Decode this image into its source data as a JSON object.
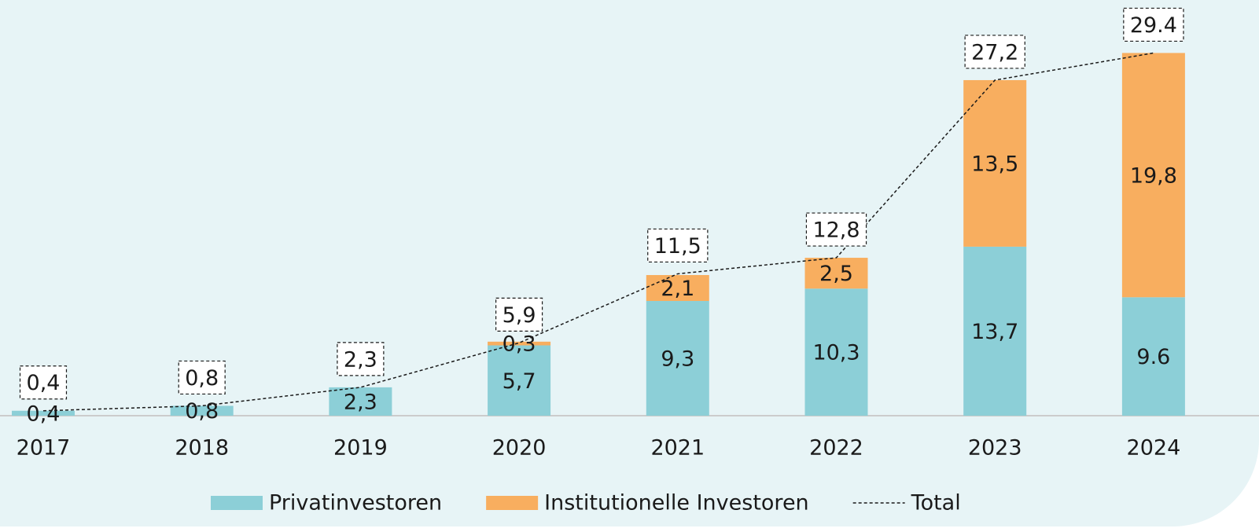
{
  "chart_data": {
    "type": "bar",
    "stacked": true,
    "categories": [
      "2017",
      "2018",
      "2019",
      "2020",
      "2021",
      "2022",
      "2023",
      "2024"
    ],
    "ylim": [
      0,
      30
    ],
    "series": [
      {
        "name": "Privatinvestoren",
        "color": "#8ccfd7",
        "values": [
          0.4,
          0.8,
          2.3,
          5.7,
          9.3,
          10.3,
          13.7,
          9.6
        ],
        "value_labels": [
          "0,4",
          "0,8",
          "2,3",
          "5,7",
          "9,3",
          "10,3",
          "13,7",
          "9.6"
        ]
      },
      {
        "name": "Institutionelle Investoren",
        "color": "#f8ae5f",
        "values": [
          null,
          null,
          null,
          0.3,
          2.1,
          2.5,
          13.5,
          19.8
        ],
        "value_labels": [
          null,
          null,
          null,
          "0,3",
          "2,1",
          "2,5",
          "13,5",
          "19,8"
        ]
      },
      {
        "name": "Total",
        "type": "line",
        "color": "#1a1a1a",
        "dashed": true,
        "values": [
          0.4,
          0.8,
          2.3,
          5.9,
          11.5,
          12.8,
          27.2,
          29.4
        ],
        "value_labels": [
          "0,4",
          "0,8",
          "2,3",
          "5,9",
          "11,5",
          "12,8",
          "27,2",
          "29.4"
        ]
      }
    ]
  }
}
